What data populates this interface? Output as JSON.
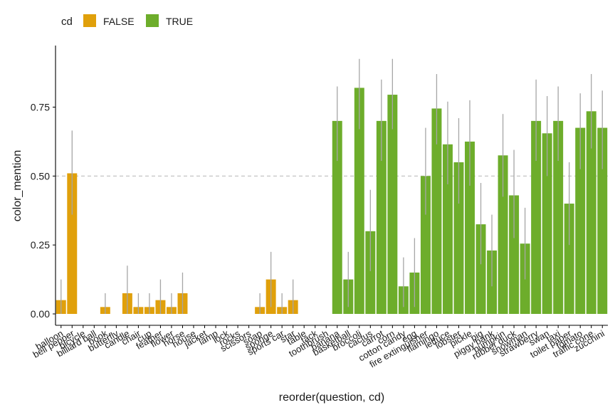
{
  "chart_data": {
    "type": "bar",
    "title": "",
    "xlabel": "reorder(question, cd)",
    "ylabel": "color_mention",
    "ylim": [
      -0.04,
      0.95
    ],
    "yticks": [
      0.0,
      0.25,
      0.5,
      0.75
    ],
    "ytick_labels": [
      "0.00",
      "0.25",
      "0.50",
      "0.75"
    ],
    "reference_line": {
      "y": 0.5,
      "style": "dashed"
    },
    "legend": {
      "title": "cd",
      "position": "top-left",
      "entries": [
        {
          "label": "FALSE",
          "color": "#E0A00B"
        },
        {
          "label": "TRUE",
          "color": "#6DAD2B"
        }
      ]
    },
    "colors": {
      "FALSE": "#E0A00B",
      "TRUE": "#6DAD2B",
      "errorbar": "#a6a6a6",
      "refline": "#bfbfbf"
    },
    "categories": [
      "balloon",
      "bell pepper",
      "bicycle",
      "billiard ball",
      "book",
      "butterfly",
      "candle",
      "chair",
      "cup",
      "feather",
      "flower",
      "horse",
      "house",
      "jacket",
      "lamp",
      "lock",
      "rocks",
      "scissors",
      "soap",
      "sponge",
      "sports car",
      "star",
      "table",
      "tack",
      "toothbrush",
      "banana",
      "basketball",
      "broccoli",
      "cactus",
      "carrot",
      "corn",
      "cotton candy",
      "egg",
      "fire extinguisher",
      "flamingo",
      "lettuce",
      "lobster",
      "pickle",
      "pig",
      "piggy bank",
      "pumpkin",
      "rubber duck",
      "snowman",
      "strawberry",
      "swan",
      "taxi",
      "toilet paper",
      "tomato",
      "traffic cone",
      "zucchini"
    ],
    "cd": [
      false,
      false,
      false,
      false,
      false,
      false,
      false,
      false,
      false,
      false,
      false,
      false,
      false,
      false,
      false,
      false,
      false,
      false,
      false,
      false,
      false,
      false,
      false,
      false,
      false,
      true,
      true,
      true,
      true,
      true,
      true,
      true,
      true,
      true,
      true,
      true,
      true,
      true,
      true,
      true,
      true,
      true,
      true,
      true,
      true,
      true,
      true,
      true,
      true,
      true
    ],
    "values": [
      0.05,
      0.51,
      0,
      0,
      0.025,
      0,
      0.075,
      0.025,
      0.025,
      0.05,
      0.025,
      0.075,
      0,
      0,
      0,
      0,
      0,
      0,
      0.025,
      0.125,
      0.025,
      0.05,
      0,
      0,
      0,
      0.7,
      0.125,
      0.82,
      0.3,
      0.7,
      0.795,
      0.1,
      0.15,
      0.5,
      0.745,
      0.615,
      0.55,
      0.625,
      0.325,
      0.23,
      0.575,
      0.43,
      0.255,
      0.7,
      0.655,
      0.7,
      0.4,
      0.675,
      0.735,
      0.675
    ],
    "error_low": [
      0,
      0.36,
      0,
      0,
      0,
      0,
      0,
      0,
      0,
      0,
      0,
      0,
      0,
      0,
      0,
      0,
      0,
      0,
      0,
      0.025,
      0,
      0,
      0,
      0,
      0,
      0.555,
      0.025,
      0.67,
      0.155,
      0.555,
      0.67,
      0.025,
      0.025,
      0.36,
      0.615,
      0.47,
      0.4,
      0.465,
      0.18,
      0.1,
      0.425,
      0.275,
      0.125,
      0.555,
      0.5,
      0.555,
      0.25,
      0.525,
      0.6,
      0.525
    ],
    "error_high": [
      0.125,
      0.665,
      0,
      0,
      0.075,
      0,
      0.175,
      0.075,
      0.075,
      0.125,
      0.075,
      0.15,
      0,
      0,
      0,
      0,
      0,
      0,
      0.075,
      0.225,
      0.075,
      0.125,
      0,
      0,
      0,
      0.825,
      0.225,
      0.925,
      0.45,
      0.85,
      0.925,
      0.205,
      0.275,
      0.675,
      0.87,
      0.77,
      0.71,
      0.775,
      0.475,
      0.36,
      0.725,
      0.595,
      0.385,
      0.85,
      0.79,
      0.825,
      0.55,
      0.8,
      0.87,
      0.81
    ]
  }
}
